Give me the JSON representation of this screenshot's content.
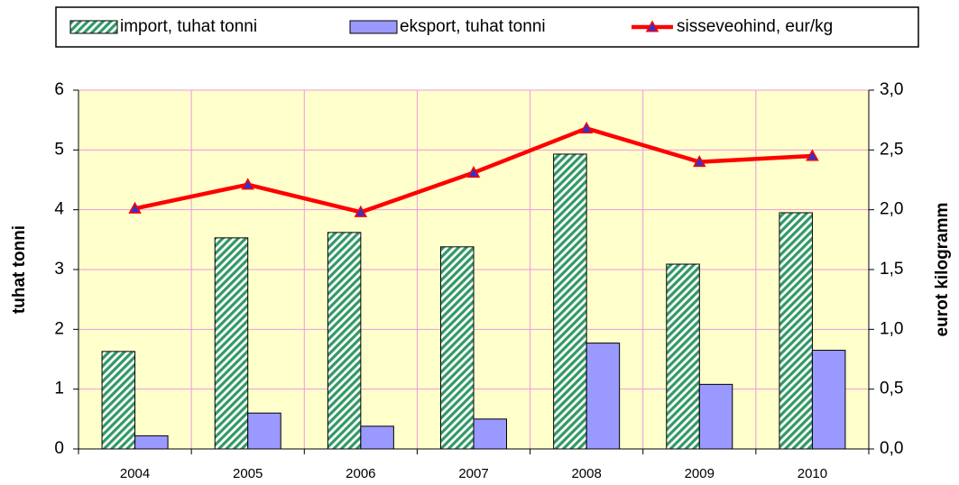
{
  "chart_data": {
    "type": "bar_line",
    "categories": [
      "2004",
      "2005",
      "2006",
      "2007",
      "2008",
      "2009",
      "2010"
    ],
    "series": [
      {
        "name": "import, tuhat tonni",
        "type": "bar",
        "color": "#339966",
        "hatch": true,
        "values": [
          1.63,
          3.53,
          3.62,
          3.38,
          4.93,
          3.09,
          3.95
        ]
      },
      {
        "name": "eksport, tuhat tonni",
        "type": "bar",
        "color": "#9999ff",
        "values": [
          0.22,
          0.6,
          0.38,
          0.5,
          1.77,
          1.08,
          1.65
        ]
      },
      {
        "name": "sisseveohind, eur/kg",
        "type": "line",
        "axis": "y2",
        "color": "#ff0000",
        "marker_color": "#3333cc",
        "values": [
          2.01,
          2.21,
          1.98,
          2.31,
          2.68,
          2.4,
          2.45
        ]
      }
    ],
    "ylabel": "tuhat tonni",
    "y2label": "eurot kilogramm",
    "ylim": [
      0,
      6
    ],
    "yticks": [
      0,
      1,
      2,
      3,
      4,
      5,
      6
    ],
    "y2lim": [
      0,
      3
    ],
    "y2ticks": [
      {
        "value": 0,
        "label": "0,0"
      },
      {
        "value": 0.5,
        "label": "0,5"
      },
      {
        "value": 1,
        "label": "1,0"
      },
      {
        "value": 1.5,
        "label": "1,5"
      },
      {
        "value": 2,
        "label": "2,0"
      },
      {
        "value": 2.5,
        "label": "2,5"
      },
      {
        "value": 3,
        "label": "3,0"
      }
    ],
    "grid": true,
    "legend": "top",
    "plot_background": "#ffffcc",
    "grid_color": "#ee99dd"
  }
}
